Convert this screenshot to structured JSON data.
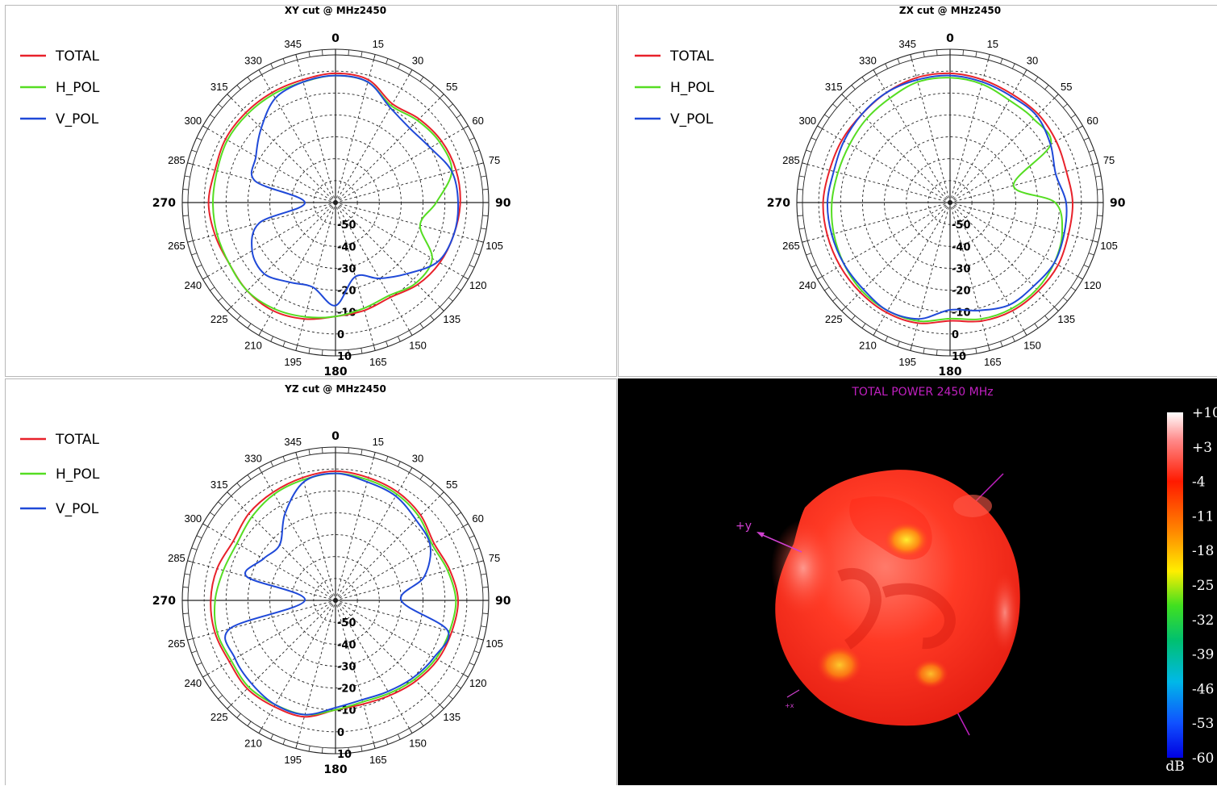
{
  "legend": [
    {
      "name": "TOTAL",
      "color": "#e8212a"
    },
    {
      "name": "H_POL",
      "color": "#55dd22"
    },
    {
      "name": "V_POL",
      "color": "#1f49d8"
    }
  ],
  "chart_data": [
    {
      "type": "polar",
      "title": "XY cut @ MHz2450",
      "angle_ticks": [
        0,
        15,
        30,
        55,
        60,
        75,
        90,
        105,
        120,
        135,
        150,
        165,
        180,
        195,
        210,
        225,
        240,
        265,
        270,
        285,
        300,
        315,
        330,
        345
      ],
      "radial_ticks": [
        "-50",
        "-40",
        "-30",
        "-20",
        "-10",
        "0",
        "10"
      ],
      "r_range": [
        -60,
        10
      ],
      "theta_step_deg": 15,
      "series": [
        {
          "name": "TOTAL",
          "values": [
            -1,
            -2,
            -8,
            -6,
            -4,
            -3,
            -3,
            -4,
            -5,
            -7,
            -10,
            -9,
            -8,
            -5,
            -3,
            -3,
            -4,
            -3,
            -2,
            -3,
            -2,
            -2,
            -2,
            -2,
            -1
          ]
        },
        {
          "name": "H_POL",
          "values": [
            -2,
            -3,
            -9,
            -7,
            -5,
            -5,
            -14,
            -20,
            -9,
            -8,
            -11,
            -10,
            -8,
            -6,
            -4,
            -3,
            -4,
            -4,
            -4,
            -4,
            -3,
            -3,
            -3,
            -3,
            -2
          ]
        },
        {
          "name": "V_POL",
          "values": [
            -2,
            -3,
            -10,
            -12,
            -10,
            -5,
            -4,
            -4,
            -6,
            -14,
            -20,
            -25,
            -13,
            -20,
            -18,
            -14,
            -16,
            -24,
            -46,
            -22,
            -18,
            -12,
            -5,
            -3,
            -2
          ]
        }
      ]
    },
    {
      "type": "polar",
      "title": "ZX cut @ MHz2450",
      "angle_ticks": [
        0,
        15,
        30,
        55,
        60,
        75,
        90,
        105,
        120,
        135,
        150,
        165,
        180,
        195,
        210,
        225,
        240,
        265,
        270,
        285,
        300,
        315,
        330,
        345
      ],
      "radial_ticks": [
        "-50",
        "-40",
        "-30",
        "-20",
        "-10",
        "0",
        "10"
      ],
      "r_range": [
        -60,
        10
      ],
      "theta_step_deg": 15,
      "series": [
        {
          "name": "TOTAL",
          "values": [
            -1,
            -2,
            -3,
            -3,
            -4,
            -5,
            -4,
            -4,
            -3,
            -3,
            -3,
            -4,
            -6,
            -3,
            -2,
            -2,
            -2,
            -2,
            -2,
            -3,
            -3,
            -3,
            -2,
            -1,
            -1
          ]
        },
        {
          "name": "H_POL",
          "values": [
            -3,
            -4,
            -6,
            -6,
            -7,
            -30,
            -12,
            -7,
            -5,
            -4,
            -4,
            -5,
            -7,
            -4,
            -3,
            -3,
            -4,
            -5,
            -6,
            -7,
            -7,
            -6,
            -5,
            -3,
            -3
          ]
        },
        {
          "name": "V_POL",
          "values": [
            -2,
            -3,
            -4,
            -4,
            -7,
            -10,
            -7,
            -6,
            -5,
            -6,
            -6,
            -9,
            -11,
            -5,
            -3,
            -4,
            -4,
            -4,
            -4,
            -5,
            -4,
            -3,
            -2,
            -2,
            -2
          ]
        }
      ]
    },
    {
      "type": "polar",
      "title": "YZ cut @ MHz2450",
      "angle_ticks": [
        0,
        15,
        30,
        55,
        60,
        75,
        90,
        105,
        120,
        135,
        150,
        165,
        180,
        195,
        210,
        225,
        240,
        265,
        270,
        285,
        300,
        315,
        330,
        345
      ],
      "radial_ticks": [
        "-50",
        "-40",
        "-30",
        "-20",
        "-10",
        "0",
        "10"
      ],
      "r_range": [
        -60,
        10
      ],
      "theta_step_deg": 15,
      "series": [
        {
          "name": "TOTAL",
          "values": [
            -1,
            -2,
            -3,
            -5,
            -8,
            -6,
            -4,
            -5,
            -6,
            -8,
            -10,
            -11,
            -10,
            -5,
            -4,
            -3,
            -4,
            -3,
            -3,
            -4,
            -6,
            -4,
            -3,
            -2,
            -1
          ]
        },
        {
          "name": "H_POL",
          "values": [
            -2,
            -3,
            -4,
            -6,
            -9,
            -7,
            -5,
            -6,
            -7,
            -9,
            -11,
            -12,
            -10,
            -6,
            -5,
            -4,
            -5,
            -4,
            -5,
            -7,
            -8,
            -6,
            -4,
            -3,
            -2
          ]
        },
        {
          "name": "V_POL",
          "values": [
            -2,
            -4,
            -5,
            -8,
            -10,
            -18,
            -30,
            -7,
            -8,
            -10,
            -12,
            -13,
            -11,
            -6,
            -5,
            -6,
            -7,
            -10,
            -46,
            -18,
            -22,
            -24,
            -14,
            -4,
            -2
          ]
        }
      ]
    }
  ],
  "radiation_3d": {
    "title": "TOTAL POWER 2450   MHz",
    "axis_y_label": "+y",
    "axis_x_label": "+x",
    "colorbar_unit": "dB",
    "colorbar_ticks": [
      "+10",
      "+3",
      "-4",
      "-11",
      "-18",
      "-25",
      "-32",
      "-39",
      "-46",
      "-53",
      "-60"
    ]
  }
}
